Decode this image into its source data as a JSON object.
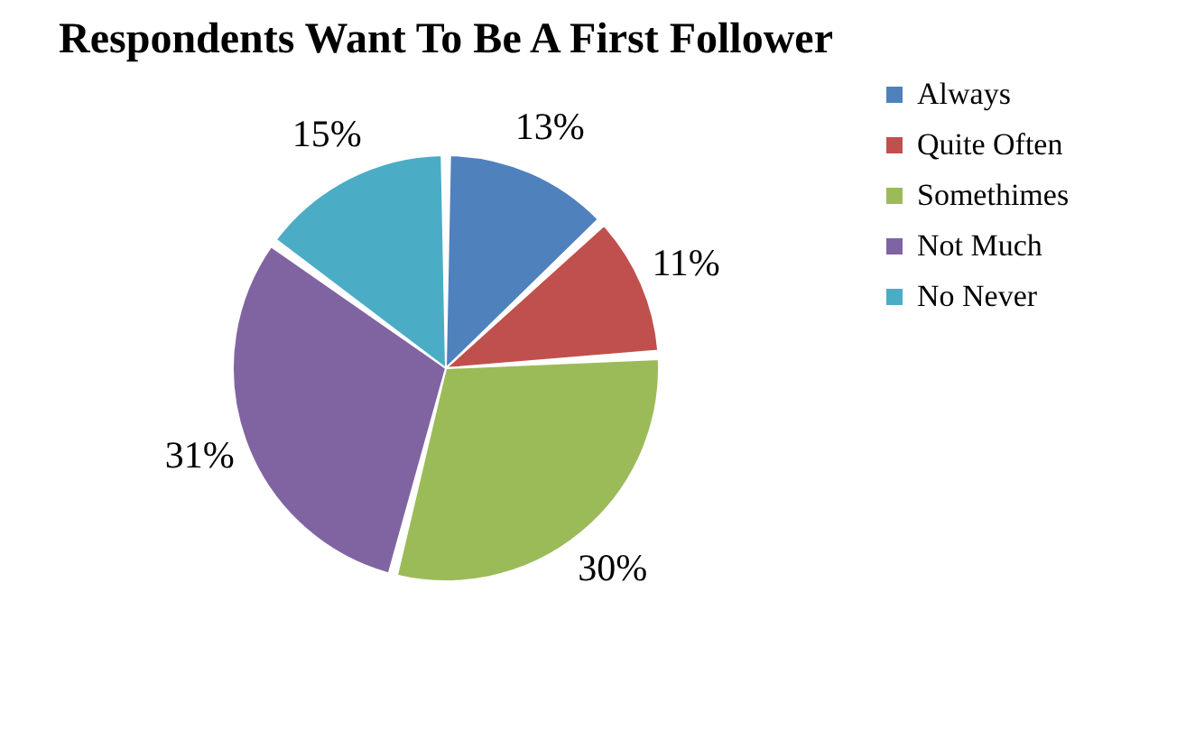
{
  "chart_data": {
    "type": "pie",
    "title": "Respondents Want To Be A First Follower",
    "categories": [
      "Always",
      "Quite Often",
      "Somethimes",
      "Not Much",
      "No Never"
    ],
    "values": [
      13,
      11,
      30,
      31,
      15
    ],
    "value_labels": [
      "13%",
      "11%",
      "30%",
      "31%",
      "15%"
    ],
    "colors": [
      "#4f81bd",
      "#c0504d",
      "#9bbb59",
      "#8064a2",
      "#4bacc6"
    ],
    "legend": "right"
  }
}
